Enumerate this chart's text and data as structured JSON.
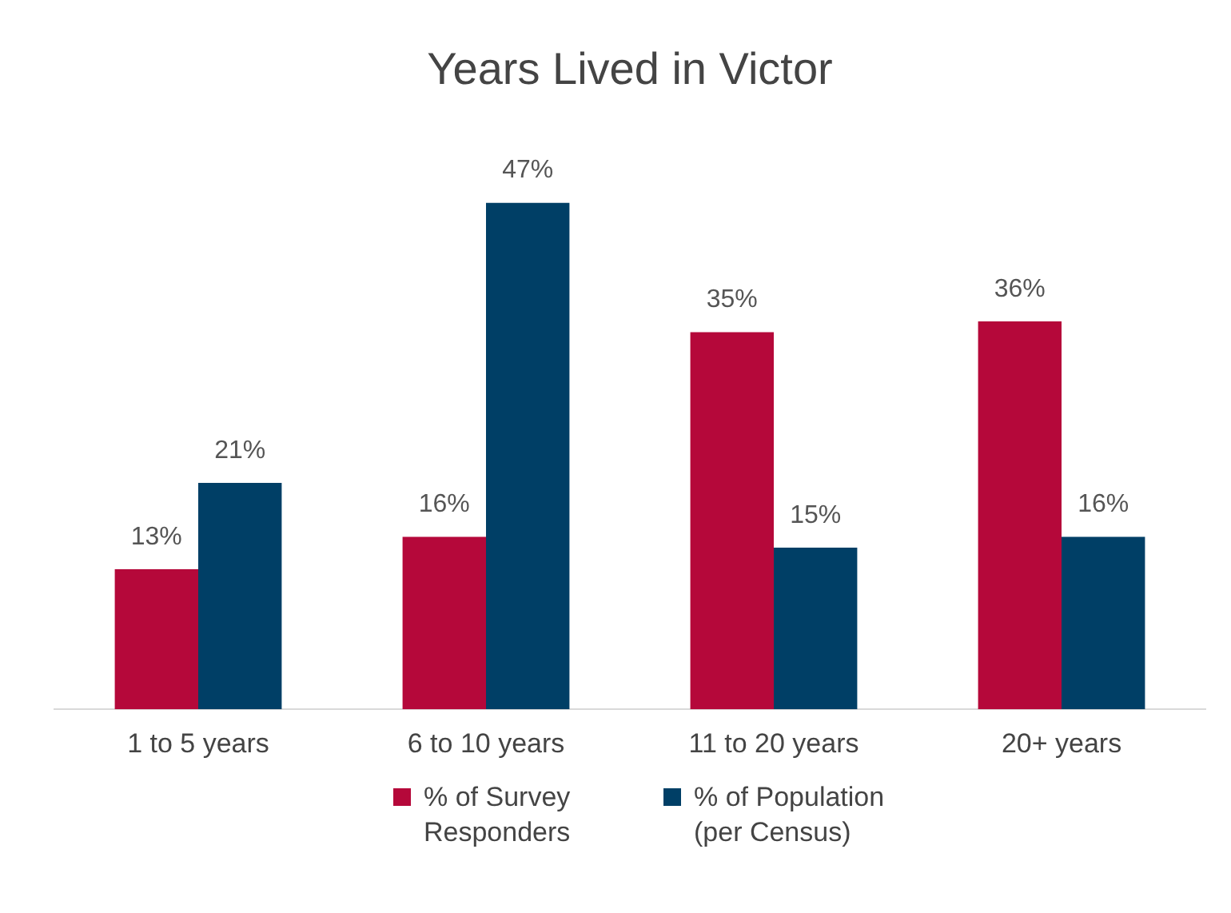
{
  "chart_data": {
    "type": "bar",
    "title": "Years Lived in Victor",
    "categories": [
      "1 to 5 years",
      "6 to 10 years",
      "11 to 20 years",
      "20+ years"
    ],
    "series": [
      {
        "name": "% of Survey Responders",
        "color": "#b5083a",
        "values": [
          13,
          16,
          35,
          36
        ],
        "value_labels": [
          "13%",
          "16%",
          "35%",
          "36%"
        ]
      },
      {
        "name": "% of Population (per Census)",
        "color": "#003f66",
        "values": [
          21,
          47,
          15,
          16
        ],
        "value_labels": [
          "21%",
          "47%",
          "15%",
          "16%"
        ]
      }
    ],
    "legend": "bottom"
  }
}
